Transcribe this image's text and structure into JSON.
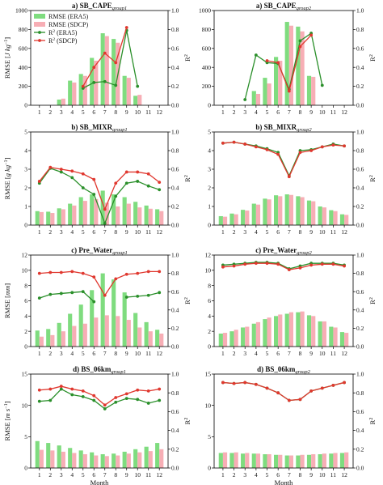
{
  "chart_data": [
    {
      "type": "bar",
      "panel": "a_group1",
      "title_main": "a) SB_CAPE",
      "title_sub": "group1",
      "ylabel_main": "RMSE [",
      "ylabel_unit": "J kg",
      "ylabel_exp": "−1",
      "ylabel_end": "]",
      "y2label_main": "R",
      "y2label_sup": "2",
      "xlabel": "",
      "ylim": [
        0,
        1000
      ],
      "yticks": [
        0,
        200,
        400,
        600,
        800,
        1000
      ],
      "y2lim": [
        0,
        1.0
      ],
      "y2ticks": [
        "0.0",
        "0.2",
        "0.4",
        "0.6",
        "0.8",
        "1.0"
      ],
      "categories": [
        1,
        2,
        3,
        4,
        5,
        6,
        7,
        8,
        9,
        10,
        11,
        12
      ],
      "series": [
        {
          "name": "RMSE (ERA5)",
          "kind": "bar",
          "color": "#7fdc7f",
          "values": [
            0,
            0,
            60,
            260,
            330,
            500,
            760,
            700,
            310,
            100,
            0,
            0
          ]
        },
        {
          "name": "RMSE (SDCP)",
          "kind": "bar",
          "color": "#f7aeb5",
          "values": [
            0,
            0,
            70,
            240,
            310,
            470,
            730,
            660,
            290,
            110,
            0,
            0
          ]
        },
        {
          "name": "R² (ERA5)",
          "kind": "line",
          "color": "#2a8f2a",
          "values": [
            null,
            null,
            null,
            null,
            0.18,
            0.24,
            0.25,
            0.21,
            0.79,
            0.2,
            null,
            null
          ]
        },
        {
          "name": "R² (SDCP)",
          "kind": "line",
          "color": "#e0382f",
          "values": [
            null,
            null,
            null,
            null,
            0.2,
            0.4,
            0.55,
            0.45,
            0.82,
            null,
            null,
            null
          ]
        }
      ],
      "legend": {
        "position": "top-left",
        "items": [
          {
            "label": "RMSE (ERA5)",
            "kind": "bar",
            "color": "#7fdc7f"
          },
          {
            "label": "RMSE (SDCP)",
            "kind": "bar",
            "color": "#f7aeb5"
          },
          {
            "label": "R",
            "sup": "2",
            "suffix": " (ERA5)",
            "kind": "line",
            "color": "#2a8f2a"
          },
          {
            "label": "R",
            "sup": "2",
            "suffix": " (SDCP)",
            "kind": "line",
            "color": "#e0382f"
          }
        ]
      }
    },
    {
      "type": "bar",
      "panel": "a_group2",
      "title_main": "a) SB_CAPE",
      "title_sub": "group2",
      "ylabel_main": "",
      "ylabel_unit": "",
      "ylabel_exp": "",
      "ylabel_end": "",
      "y2label_main": "R",
      "y2label_sup": "2",
      "xlabel": "",
      "ylim": [
        0,
        1000
      ],
      "yticks": [
        0,
        200,
        400,
        600,
        800,
        1000
      ],
      "y2lim": [
        0,
        1.0
      ],
      "y2ticks": [
        "0.0",
        "0.2",
        "0.4",
        "0.6",
        "0.8",
        "1.0"
      ],
      "categories": [
        1,
        2,
        3,
        4,
        5,
        6,
        7,
        8,
        9,
        10,
        11,
        12
      ],
      "series": [
        {
          "name": "RMSE (ERA5)",
          "kind": "bar",
          "color": "#7fdc7f",
          "values": [
            0,
            0,
            0,
            150,
            290,
            510,
            880,
            830,
            310,
            0,
            0,
            0
          ]
        },
        {
          "name": "RMSE (SDCP)",
          "kind": "bar",
          "color": "#f7aeb5",
          "values": [
            0,
            0,
            0,
            120,
            230,
            470,
            840,
            780,
            300,
            0,
            0,
            0
          ]
        },
        {
          "name": "R² (ERA5)",
          "kind": "line",
          "color": "#2a8f2a",
          "values": [
            null,
            null,
            0.06,
            0.53,
            0.45,
            0.44,
            0.17,
            0.68,
            0.76,
            0.21,
            null,
            null
          ]
        },
        {
          "name": "R² (SDCP)",
          "kind": "line",
          "color": "#e0382f",
          "values": [
            null,
            null,
            null,
            null,
            0.47,
            0.45,
            0.15,
            0.62,
            0.74,
            null,
            null,
            null
          ]
        }
      ]
    },
    {
      "type": "bar",
      "panel": "b_group1",
      "title_main": "b) SB_MIXR",
      "title_sub": "group1",
      "ylabel_main": "RMSE [",
      "ylabel_unit": "g kg",
      "ylabel_exp": "−1",
      "ylabel_end": "]",
      "y2label_main": "R",
      "y2label_sup": "2",
      "xlabel": "",
      "ylim": [
        0,
        5
      ],
      "yticks": [
        0,
        1,
        2,
        3,
        4,
        5
      ],
      "y2lim": [
        0,
        1.0
      ],
      "y2ticks": [
        "0.0",
        "0.2",
        "0.4",
        "0.6",
        "0.8",
        "1.0"
      ],
      "categories": [
        1,
        2,
        3,
        4,
        5,
        6,
        7,
        8,
        9,
        10,
        11,
        12
      ],
      "series": [
        {
          "name": "RMSE (ERA5)",
          "kind": "bar",
          "color": "#7fdc7f",
          "values": [
            0.75,
            0.72,
            0.9,
            1.15,
            1.5,
            1.65,
            1.85,
            1.65,
            1.5,
            1.25,
            1.05,
            0.85
          ]
        },
        {
          "name": "RMSE (SDCP)",
          "kind": "bar",
          "color": "#f7aeb5",
          "values": [
            0.7,
            0.65,
            0.85,
            1.05,
            1.3,
            1.4,
            1.2,
            1.0,
            1.15,
            0.95,
            0.88,
            0.75
          ]
        },
        {
          "name": "R² (ERA5)",
          "kind": "line",
          "color": "#2a8f2a",
          "values": [
            0.45,
            0.61,
            0.57,
            0.51,
            0.4,
            0.33,
            0.02,
            0.31,
            0.45,
            0.47,
            0.42,
            0.38
          ]
        },
        {
          "name": "R² (SDCP)",
          "kind": "line",
          "color": "#e0382f",
          "values": [
            0.47,
            0.62,
            0.6,
            0.58,
            0.55,
            0.49,
            0.17,
            0.45,
            0.57,
            0.57,
            0.55,
            0.46
          ]
        }
      ]
    },
    {
      "type": "bar",
      "panel": "b_group2",
      "title_main": "b) SB_MIXR",
      "title_sub": "group2",
      "ylabel_main": "",
      "ylabel_unit": "",
      "ylabel_exp": "",
      "ylabel_end": "",
      "y2label_main": "R",
      "y2label_sup": "2",
      "xlabel": "",
      "ylim": [
        0,
        5
      ],
      "yticks": [
        0,
        1,
        2,
        3,
        4,
        5
      ],
      "y2lim": [
        0,
        1.0
      ],
      "y2ticks": [
        "0.0",
        "0.2",
        "0.4",
        "0.6",
        "0.8",
        "1.0"
      ],
      "categories": [
        1,
        2,
        3,
        4,
        5,
        6,
        7,
        8,
        9,
        10,
        11,
        12
      ],
      "series": [
        {
          "name": "RMSE (ERA5)",
          "kind": "bar",
          "color": "#7fdc7f",
          "values": [
            0.48,
            0.62,
            0.82,
            1.15,
            1.42,
            1.6,
            1.65,
            1.55,
            1.32,
            1.0,
            0.8,
            0.58
          ]
        },
        {
          "name": "RMSE (SDCP)",
          "kind": "bar",
          "color": "#f7aeb5",
          "values": [
            0.45,
            0.58,
            0.78,
            1.1,
            1.38,
            1.55,
            1.62,
            1.5,
            1.28,
            0.95,
            0.75,
            0.55
          ]
        },
        {
          "name": "R² (ERA5)",
          "kind": "line",
          "color": "#2a8f2a",
          "values": [
            0.88,
            0.89,
            0.87,
            0.85,
            0.82,
            0.78,
            0.53,
            0.8,
            0.81,
            0.84,
            0.87,
            0.85
          ]
        },
        {
          "name": "R² (SDCP)",
          "kind": "line",
          "color": "#e0382f",
          "values": [
            0.88,
            0.89,
            0.87,
            0.84,
            0.81,
            0.76,
            0.52,
            0.78,
            0.8,
            0.84,
            0.86,
            0.85
          ]
        }
      ]
    },
    {
      "type": "bar",
      "panel": "c_group1",
      "title_main": "c) Pre_Water",
      "title_sub": "group1",
      "ylabel_main": "RMSE [",
      "ylabel_unit": "mm",
      "ylabel_exp": "",
      "ylabel_end": "]",
      "y2label_main": "R",
      "y2label_sup": "2",
      "xlabel": "",
      "ylim": [
        0,
        12
      ],
      "yticks": [
        0,
        2,
        4,
        6,
        8,
        10,
        12
      ],
      "y2lim": [
        0,
        1.0
      ],
      "y2ticks": [
        "0.0",
        "0.2",
        "0.4",
        "0.6",
        "0.8",
        "1.0"
      ],
      "categories": [
        1,
        2,
        3,
        4,
        5,
        6,
        7,
        8,
        9,
        10,
        11,
        12
      ],
      "series": [
        {
          "name": "RMSE (ERA5)",
          "kind": "bar",
          "color": "#7fdc7f",
          "values": [
            2.1,
            2.3,
            3.1,
            4.3,
            5.5,
            7.4,
            9.6,
            8.8,
            7.1,
            4.4,
            3.2,
            2.2
          ]
        },
        {
          "name": "RMSE (SDCP)",
          "kind": "bar",
          "color": "#f7aeb5",
          "values": [
            1.3,
            1.5,
            2.0,
            2.7,
            3.0,
            3.8,
            4.1,
            4.0,
            3.5,
            2.5,
            2.0,
            1.7
          ]
        },
        {
          "name": "R² (ERA5)",
          "kind": "line",
          "color": "#2a8f2a",
          "values": [
            0.53,
            0.57,
            0.58,
            0.59,
            0.6,
            0.49,
            null,
            null,
            0.54,
            0.55,
            0.56,
            0.59
          ]
        },
        {
          "name": "R² (SDCP)",
          "kind": "line",
          "color": "#e0382f",
          "values": [
            0.8,
            0.81,
            0.81,
            0.82,
            0.8,
            0.76,
            0.56,
            0.74,
            0.79,
            0.8,
            0.82,
            0.82
          ]
        }
      ]
    },
    {
      "type": "bar",
      "panel": "c_group2",
      "title_main": "c) Pre_Water",
      "title_sub": "group2",
      "ylabel_main": "",
      "ylabel_unit": "",
      "ylabel_exp": "",
      "ylabel_end": "",
      "y2label_main": "R",
      "y2label_sup": "2",
      "xlabel": "",
      "ylim": [
        0,
        12
      ],
      "yticks": [
        0,
        2,
        4,
        6,
        8,
        10,
        12
      ],
      "y2lim": [
        0,
        1.0
      ],
      "y2ticks": [
        "0.0",
        "0.2",
        "0.4",
        "0.6",
        "0.8",
        "1.0"
      ],
      "categories": [
        1,
        2,
        3,
        4,
        5,
        6,
        7,
        8,
        9,
        10,
        11,
        12
      ],
      "series": [
        {
          "name": "RMSE (ERA5)",
          "kind": "bar",
          "color": "#7fdc7f",
          "values": [
            1.7,
            2.0,
            2.5,
            3.0,
            3.6,
            4.0,
            4.3,
            4.5,
            4.1,
            3.3,
            2.6,
            1.9
          ]
        },
        {
          "name": "RMSE (SDCP)",
          "kind": "bar",
          "color": "#f7aeb5",
          "values": [
            1.8,
            2.2,
            2.6,
            3.2,
            3.8,
            4.2,
            4.5,
            4.6,
            4.0,
            3.3,
            2.5,
            1.8
          ]
        },
        {
          "name": "R² (ERA5)",
          "kind": "line",
          "color": "#2a8f2a",
          "values": [
            0.89,
            0.9,
            0.91,
            0.92,
            0.92,
            0.91,
            0.85,
            0.88,
            0.91,
            0.91,
            0.91,
            0.89
          ]
        },
        {
          "name": "R² (SDCP)",
          "kind": "line",
          "color": "#e0382f",
          "values": [
            0.87,
            0.88,
            0.9,
            0.91,
            0.91,
            0.9,
            0.84,
            0.86,
            0.89,
            0.9,
            0.9,
            0.88
          ]
        }
      ]
    },
    {
      "type": "bar",
      "panel": "d_group1",
      "title_main": "d) BS_06km",
      "title_sub": "group1",
      "ylabel_main": "RMSE [",
      "ylabel_unit": "m s",
      "ylabel_exp": "−1",
      "ylabel_end": "]",
      "y2label_main": "R",
      "y2label_sup": "2",
      "xlabel": "Month",
      "ylim": [
        0,
        15
      ],
      "yticks": [
        0,
        5,
        10,
        15
      ],
      "y2lim": [
        0,
        1.0
      ],
      "y2ticks": [
        "0.0",
        "0.2",
        "0.4",
        "0.6",
        "0.8",
        "1.0"
      ],
      "categories": [
        1,
        2,
        3,
        4,
        5,
        6,
        7,
        8,
        9,
        10,
        11,
        12
      ],
      "series": [
        {
          "name": "RMSE (ERA5)",
          "kind": "bar",
          "color": "#7fdc7f",
          "values": [
            4.3,
            4.0,
            3.6,
            3.2,
            2.8,
            2.5,
            2.2,
            2.3,
            2.6,
            3.0,
            3.4,
            4.0
          ]
        },
        {
          "name": "RMSE (SDCP)",
          "kind": "bar",
          "color": "#f7aeb5",
          "values": [
            2.9,
            2.8,
            2.6,
            2.4,
            2.2,
            2.0,
            1.9,
            2.0,
            2.3,
            2.5,
            2.7,
            3.0
          ]
        },
        {
          "name": "R² (ERA5)",
          "kind": "line",
          "color": "#2a8f2a",
          "values": [
            0.71,
            0.72,
            0.84,
            0.78,
            0.76,
            0.72,
            0.63,
            0.7,
            0.74,
            0.73,
            0.69,
            0.72
          ]
        },
        {
          "name": "R² (SDCP)",
          "kind": "line",
          "color": "#e0382f",
          "values": [
            0.83,
            0.84,
            0.87,
            0.84,
            0.82,
            0.77,
            0.67,
            0.75,
            0.79,
            0.83,
            0.82,
            0.84
          ]
        }
      ]
    },
    {
      "type": "bar",
      "panel": "d_group2",
      "title_main": "d) BS_06km",
      "title_sub": "group2",
      "ylabel_main": "",
      "ylabel_unit": "",
      "ylabel_exp": "",
      "ylabel_end": "",
      "y2label_main": "R",
      "y2label_sup": "2",
      "xlabel": "Month",
      "ylim": [
        0,
        15
      ],
      "yticks": [
        0,
        5,
        10,
        15
      ],
      "y2lim": [
        0,
        1.0
      ],
      "y2ticks": [
        "0.0",
        "0.2",
        "0.4",
        "0.6",
        "0.8",
        "1.0"
      ],
      "categories": [
        1,
        2,
        3,
        4,
        5,
        6,
        7,
        8,
        9,
        10,
        11,
        12
      ],
      "series": [
        {
          "name": "RMSE (ERA5)",
          "kind": "bar",
          "color": "#7fdc7f",
          "values": [
            2.4,
            2.4,
            2.3,
            2.3,
            2.2,
            2.1,
            2.0,
            2.0,
            2.1,
            2.2,
            2.3,
            2.4
          ]
        },
        {
          "name": "RMSE (SDCP)",
          "kind": "bar",
          "color": "#f7aeb5",
          "values": [
            2.5,
            2.5,
            2.4,
            2.3,
            2.2,
            2.1,
            2.0,
            2.1,
            2.2,
            2.3,
            2.4,
            2.5
          ]
        },
        {
          "name": "R² (ERA5)",
          "kind": "line",
          "color": "#2a8f2a",
          "values": [
            0.91,
            0.9,
            0.91,
            0.89,
            0.85,
            0.8,
            0.72,
            0.73,
            0.82,
            0.85,
            0.88,
            0.91
          ]
        },
        {
          "name": "R² (SDCP)",
          "kind": "line",
          "color": "#e0382f",
          "values": [
            0.91,
            0.9,
            0.91,
            0.89,
            0.85,
            0.8,
            0.72,
            0.73,
            0.82,
            0.85,
            0.88,
            0.91
          ]
        }
      ]
    }
  ]
}
